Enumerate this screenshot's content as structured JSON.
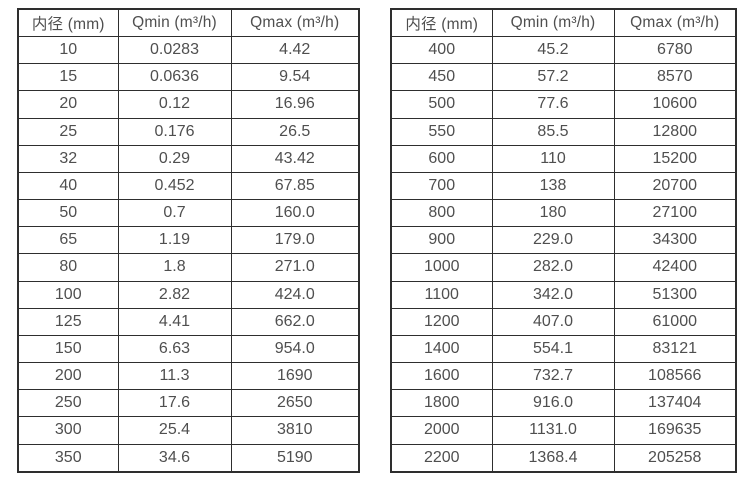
{
  "chart_data": [
    {
      "type": "table",
      "headers": [
        "内径 (mm)",
        "Qmin (m³/h)",
        "Qmax (m³/h)"
      ],
      "rows": [
        [
          "10",
          "0.0283",
          "4.42"
        ],
        [
          "15",
          "0.0636",
          "9.54"
        ],
        [
          "20",
          "0.12",
          "16.96"
        ],
        [
          "25",
          "0.176",
          "26.5"
        ],
        [
          "32",
          "0.29",
          "43.42"
        ],
        [
          "40",
          "0.452",
          "67.85"
        ],
        [
          "50",
          "0.7",
          "160.0"
        ],
        [
          "65",
          "1.19",
          "179.0"
        ],
        [
          "80",
          "1.8",
          "271.0"
        ],
        [
          "100",
          "2.82",
          "424.0"
        ],
        [
          "125",
          "4.41",
          "662.0"
        ],
        [
          "150",
          "6.63",
          "954.0"
        ],
        [
          "200",
          "11.3",
          "1690"
        ],
        [
          "250",
          "17.6",
          "2650"
        ],
        [
          "300",
          "25.4",
          "3810"
        ],
        [
          "350",
          "34.6",
          "5190"
        ]
      ]
    },
    {
      "type": "table",
      "headers": [
        "内径 (mm)",
        "Qmin (m³/h)",
        "Qmax (m³/h)"
      ],
      "rows": [
        [
          "400",
          "45.2",
          "6780"
        ],
        [
          "450",
          "57.2",
          "8570"
        ],
        [
          "500",
          "77.6",
          "10600"
        ],
        [
          "550",
          "85.5",
          "12800"
        ],
        [
          "600",
          "110",
          "15200"
        ],
        [
          "700",
          "138",
          "20700"
        ],
        [
          "800",
          "180",
          "27100"
        ],
        [
          "900",
          "229.0",
          "34300"
        ],
        [
          "1000",
          "282.0",
          "42400"
        ],
        [
          "1100",
          "342.0",
          "51300"
        ],
        [
          "1200",
          "407.0",
          "61000"
        ],
        [
          "1400",
          "554.1",
          "83121"
        ],
        [
          "1600",
          "732.7",
          "108566"
        ],
        [
          "1800",
          "916.0",
          "137404"
        ],
        [
          "2000",
          "1131.0",
          "169635"
        ],
        [
          "2200",
          "1368.4",
          "205258"
        ]
      ]
    }
  ],
  "colors": {
    "border": "#2e2e2e",
    "text": "#4f4f4f",
    "background": "#ffffff"
  }
}
